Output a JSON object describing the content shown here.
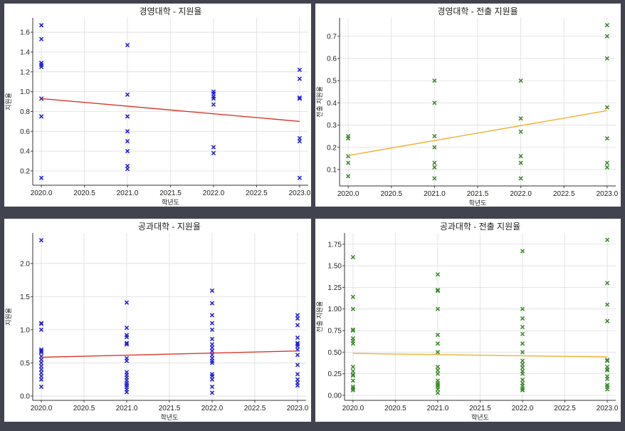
{
  "colors": {
    "background": "#41434f",
    "blue_marker": "#1f1fd6",
    "green_marker": "#3a8a2a",
    "red_trend": "#d9372b",
    "orange_trend": "#f0b030"
  },
  "chart_data": [
    {
      "type": "scatter",
      "title": "경영대학 - 지원율",
      "xlabel": "학년도",
      "ylabel": "지원율",
      "xlim": [
        2019.9,
        2023.1
      ],
      "ylim": [
        0.056,
        1.745
      ],
      "xticks": [
        "2020.0",
        "2020.5",
        "2021.0",
        "2021.5",
        "2022.0",
        "2022.5",
        "2023.0"
      ],
      "yticks": [
        "0.2",
        "0.4",
        "0.6",
        "0.8",
        "1.0",
        "1.2",
        "1.4",
        "1.6"
      ],
      "marker_color": "#1f1fd6",
      "trend_color": "#d9372b",
      "points": {
        "2020": [
          1.67,
          1.53,
          1.29,
          1.27,
          1.25,
          0.93,
          0.75,
          0.13
        ],
        "2021": [
          1.47,
          0.97,
          0.75,
          0.6,
          0.5,
          0.4,
          0.25,
          0.22
        ],
        "2022": [
          1.0,
          0.98,
          0.95,
          0.93,
          0.87,
          0.44,
          0.38
        ],
        "2023": [
          1.22,
          1.13,
          0.94,
          0.93,
          0.53,
          0.5,
          0.13
        ]
      },
      "trend": [
        [
          2020,
          0.93
        ],
        [
          2023,
          0.7
        ]
      ]
    },
    {
      "type": "scatter",
      "title": "경영대학 - 전출 지원율",
      "xlabel": "학년도",
      "ylabel": "전출 지원율",
      "xlim": [
        2019.9,
        2023.1
      ],
      "ylim": [
        0.026,
        0.783
      ],
      "xticks": [
        "2020.0",
        "2020.5",
        "2021.0",
        "2021.5",
        "2022.0",
        "2022.5",
        "2023.0"
      ],
      "yticks": [
        "0.1",
        "0.2",
        "0.3",
        "0.4",
        "0.5",
        "0.6",
        "0.7"
      ],
      "marker_color": "#3a8a2a",
      "trend_color": "#f0b030",
      "points": {
        "2020": [
          0.25,
          0.24,
          0.16,
          0.13,
          0.07
        ],
        "2021": [
          0.5,
          0.4,
          0.25,
          0.2,
          0.13,
          0.11,
          0.06
        ],
        "2022": [
          0.5,
          0.33,
          0.27,
          0.16,
          0.13,
          0.06
        ],
        "2023": [
          0.75,
          0.7,
          0.6,
          0.38,
          0.24,
          0.13,
          0.11
        ]
      },
      "trend": [
        [
          2020,
          0.163
        ],
        [
          2023,
          0.365
        ]
      ]
    },
    {
      "type": "scatter",
      "title": "공과대학 - 지원율",
      "xlabel": "학년도",
      "ylabel": "지원율",
      "xlim": [
        2019.9,
        2023.1
      ],
      "ylim": [
        -0.065,
        2.46
      ],
      "xticks": [
        "2020.0",
        "2020.5",
        "2021.0",
        "2021.5",
        "2022.0",
        "2022.5",
        "2023.0"
      ],
      "yticks": [
        "0.0",
        "0.5",
        "1.0",
        "1.5",
        "2.0"
      ],
      "marker_color": "#1f1fd6",
      "trend_color": "#d9372b",
      "points": {
        "2020": [
          2.35,
          1.1,
          1.09,
          1.0,
          0.7,
          0.68,
          0.66,
          0.6,
          0.55,
          0.5,
          0.45,
          0.4,
          0.35,
          0.3,
          0.25,
          0.14
        ],
        "2021": [
          1.41,
          1.03,
          0.92,
          0.89,
          0.8,
          0.78,
          0.57,
          0.53,
          0.36,
          0.32,
          0.28,
          0.24,
          0.2,
          0.17,
          0.14,
          0.1,
          0.06
        ],
        "2022": [
          1.59,
          1.4,
          1.22,
          1.1,
          1.0,
          0.86,
          0.78,
          0.73,
          0.68,
          0.62,
          0.57,
          0.53,
          0.5,
          0.33,
          0.3,
          0.25,
          0.14,
          0.05
        ],
        "2023": [
          1.22,
          1.17,
          1.07,
          0.88,
          0.8,
          0.78,
          0.75,
          0.7,
          0.62,
          0.47,
          0.33,
          0.25,
          0.2,
          0.16
        ]
      },
      "trend": [
        [
          2020,
          0.585
        ],
        [
          2023,
          0.68
        ]
      ]
    },
    {
      "type": "scatter",
      "title": "공과대학 - 전출 지원율",
      "xlabel": "학년도",
      "ylabel": "전출 지원율",
      "xlim": [
        2019.9,
        2023.1
      ],
      "ylim": [
        -0.058,
        1.88
      ],
      "xticks": [
        "2020.0",
        "2020.5",
        "2021.0",
        "2021.5",
        "2022.0",
        "2022.5",
        "2023.0"
      ],
      "yticks": [
        "0.00",
        "0.25",
        "0.50",
        "0.75",
        "1.00",
        "1.25",
        "1.50",
        "1.75"
      ],
      "marker_color": "#3a8a2a",
      "trend_color": "#f0b030",
      "points": {
        "2020": [
          1.6,
          1.14,
          1.0,
          0.76,
          0.75,
          0.66,
          0.63,
          0.6,
          0.33,
          0.28,
          0.24,
          0.23,
          0.17,
          0.1,
          0.08,
          0.06
        ],
        "2021": [
          1.4,
          1.22,
          1.21,
          1.0,
          0.7,
          0.6,
          0.5,
          0.33,
          0.29,
          0.25,
          0.17,
          0.14,
          0.12,
          0.1,
          0.07,
          0.03
        ],
        "2022": [
          1.67,
          1.0,
          0.89,
          0.79,
          0.71,
          0.6,
          0.5,
          0.4,
          0.36,
          0.32,
          0.28,
          0.25,
          0.18,
          0.14,
          0.11,
          0.08,
          0.06
        ],
        "2023": [
          1.8,
          1.3,
          1.05,
          0.86,
          0.41,
          0.4,
          0.33,
          0.3,
          0.29,
          0.22,
          0.19,
          0.12,
          0.1,
          0.07
        ]
      },
      "trend": [
        [
          2020,
          0.485
        ],
        [
          2023,
          0.445
        ]
      ]
    }
  ]
}
